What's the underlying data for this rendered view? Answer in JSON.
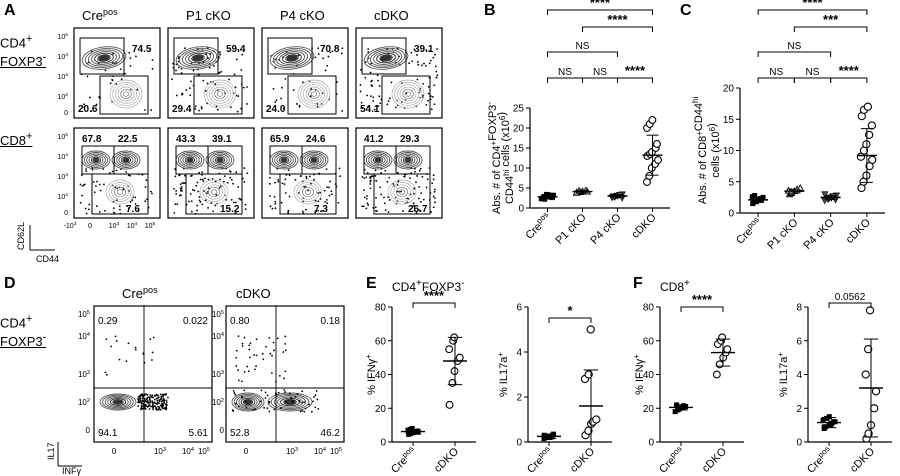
{
  "panel_letters": {
    "A": "A",
    "B": "B",
    "C": "C",
    "D": "D",
    "E": "E",
    "F": "F"
  },
  "panelA": {
    "columns": [
      {
        "name": "Cre",
        "sup": "pos"
      },
      {
        "name": "P1 cKO",
        "sup": ""
      },
      {
        "name": "P4 cKO",
        "sup": ""
      },
      {
        "name": "cDKO",
        "sup": ""
      }
    ],
    "row1": {
      "label_line1": "CD4",
      "label_sup1": "+",
      "label_line2": "FOXP3",
      "label_sup2": "-",
      "top_values": [
        "74.5",
        "59.4",
        "70.8",
        "39.1"
      ],
      "bottom_values": [
        "20.6",
        "29.4",
        "24.0",
        "54.1"
      ]
    },
    "row2": {
      "label": "CD8",
      "label_sup": "+",
      "tl_values": [
        "67.8",
        "43.3",
        "65.9",
        "41.2"
      ],
      "tr_values": [
        "22.5",
        "39.1",
        "24.6",
        "29.3"
      ],
      "bottom_values": [
        "7.6",
        "15.2",
        "7.3",
        "26.7"
      ]
    },
    "y_ticks": [
      "10",
      "10",
      "10",
      "10",
      "0"
    ],
    "y_tick_sup": [
      "5",
      "4",
      "3",
      "2",
      ""
    ],
    "x_ticks": [
      "-10",
      "0",
      "10",
      "10",
      "10"
    ],
    "x_tick_sup": [
      "3",
      "",
      "3",
      "4",
      "5"
    ],
    "y_axis": "CD62L",
    "x_axis": "CD44"
  },
  "panelD": {
    "columns": [
      {
        "name": "Cre",
        "sup": "pos"
      },
      {
        "name": "cDKO",
        "sup": ""
      }
    ],
    "row_label_line1": "CD4",
    "row_label_sup1": "+",
    "row_label_line2": "FOXP3",
    "row_label_sup2": "-",
    "quadrants": [
      {
        "tl": "0.29",
        "tr": "0.022",
        "bl": "94.1",
        "br": "5.61"
      },
      {
        "tl": "0.80",
        "tr": "0.18",
        "bl": "52.8",
        "br": "46.2"
      }
    ],
    "y_axis": "IL17",
    "x_axis": "INFγ",
    "ticks": {
      "t5": "10",
      "t4": "10",
      "t3": "10",
      "t2": "10",
      "t0": "0"
    }
  },
  "panelE_title": {
    "t1": "CD4",
    "s1": "+",
    "t2": "FOXP3",
    "s2": "-"
  },
  "panelF_title": {
    "t1": "CD8",
    "s1": "+"
  },
  "chart_data": [
    {
      "type": "scatter",
      "panel": "B",
      "categories": [
        "Crepos",
        "P1 cKO",
        "P4 cKO",
        "cDKO"
      ],
      "series": [
        {
          "values": [
            [
              2.3,
              2.6,
              2.8,
              3.0,
              3.2,
              2.5,
              2.9,
              3.4,
              2.7,
              3.1,
              2.4,
              2.2,
              3.3,
              2.8,
              2.6
            ],
            [
              3.8,
              4.0,
              4.2,
              4.4,
              4.1,
              3.9,
              4.3
            ],
            [
              2.6,
              2.8,
              3.0,
              3.2,
              3.4,
              2.9,
              2.7,
              3.1,
              3.3,
              2.5
            ],
            [
              6.5,
              8.0,
              10.0,
              11.0,
              12.0,
              13.0,
              13.5,
              14.0,
              15.0,
              16.0,
              20.0,
              21.0,
              22.0
            ]
          ]
        }
      ],
      "means": [
        2.8,
        4.1,
        3.0,
        13.2
      ],
      "sd": [
        0.4,
        0.3,
        0.3,
        5.0
      ],
      "ylabel": "Abs. # of CD4⁺FOXP3⁻ CD44ʰⁱ cells (x10⁶)",
      "ylim": [
        0,
        25
      ],
      "yticks": [
        0,
        5,
        10,
        15,
        20,
        25
      ],
      "significance": [
        {
          "a": 0,
          "b": 3,
          "label": "****"
        },
        {
          "a": 1,
          "b": 3,
          "label": "****"
        },
        {
          "a": 0,
          "b": 2,
          "label": "NS"
        },
        {
          "a": 0,
          "b": 1,
          "label": "NS"
        },
        {
          "a": 1,
          "b": 2,
          "label": "NS"
        },
        {
          "a": 2,
          "b": 3,
          "label": "****"
        }
      ]
    },
    {
      "type": "scatter",
      "panel": "C",
      "categories": [
        "Crepos",
        "P1 cKO",
        "P4 cKO",
        "cDKO"
      ],
      "series": [
        {
          "values": [
            [
              1.5,
              1.8,
              2.0,
              2.2,
              2.4,
              2.6,
              1.9,
              2.1,
              2.3,
              2.5,
              1.7,
              2.8,
              2.0,
              2.2
            ],
            [
              3.0,
              3.2,
              3.5,
              3.8,
              4.0,
              3.6,
              3.4
            ],
            [
              2.0,
              2.2,
              2.4,
              2.6,
              2.8,
              3.0,
              2.3,
              2.5,
              2.7,
              2.1
            ],
            [
              4.0,
              5.0,
              6.0,
              7.5,
              8.5,
              9.0,
              10.0,
              11.0,
              12.5,
              14.0,
              15.5,
              16.5,
              17.0
            ]
          ]
        }
      ],
      "means": [
        2.1,
        3.5,
        2.5,
        9.2
      ],
      "sd": [
        0.4,
        0.3,
        0.3,
        4.3
      ],
      "ylabel": "Abs. # of CD8⁺CD44ʰⁱ cells (x10⁶)",
      "ylim": [
        0,
        20
      ],
      "yticks": [
        0,
        5,
        10,
        15,
        20
      ],
      "significance": [
        {
          "a": 0,
          "b": 3,
          "label": "****"
        },
        {
          "a": 1,
          "b": 3,
          "label": "***"
        },
        {
          "a": 0,
          "b": 2,
          "label": "NS"
        },
        {
          "a": 0,
          "b": 1,
          "label": "NS"
        },
        {
          "a": 1,
          "b": 2,
          "label": "NS"
        },
        {
          "a": 2,
          "b": 3,
          "label": "****"
        }
      ]
    },
    {
      "type": "scatter",
      "panel": "E1",
      "categories": [
        "Crepos",
        "cDKO"
      ],
      "series": [
        {
          "values": [
            [
              4.5,
              5.0,
              5.5,
              6.0,
              6.5,
              7.0,
              7.5,
              8.0,
              6.2,
              5.8
            ],
            [
              22,
              35,
              42,
              48,
              50,
              55,
              60,
              62
            ]
          ]
        }
      ],
      "means": [
        6.2,
        48
      ],
      "sd": [
        1.2,
        14
      ],
      "ylabel": "% IFNγ⁺",
      "ylim": [
        0,
        80
      ],
      "yticks": [
        0,
        20,
        40,
        60,
        80
      ],
      "significance": [
        {
          "a": 0,
          "b": 1,
          "label": "****"
        }
      ]
    },
    {
      "type": "scatter",
      "panel": "E2",
      "categories": [
        "Crepos",
        "cDKO"
      ],
      "series": [
        {
          "values": [
            [
              0.15,
              0.2,
              0.25,
              0.3,
              0.35,
              0.3,
              0.25,
              0.2,
              0.22
            ],
            [
              0.3,
              0.5,
              0.8,
              0.9,
              1.0,
              2.8,
              3.0,
              5.0
            ]
          ]
        }
      ],
      "means": [
        0.25,
        1.6
      ],
      "sd": [
        0.1,
        1.6
      ],
      "ylabel": "% IL17a⁺",
      "ylim": [
        0,
        6
      ],
      "yticks": [
        0,
        2,
        4,
        6
      ],
      "significance": [
        {
          "a": 0,
          "b": 1,
          "label": "*"
        }
      ]
    },
    {
      "type": "scatter",
      "panel": "F1",
      "categories": [
        "Crepos",
        "cDKO"
      ],
      "series": [
        {
          "values": [
            [
              18,
              19,
              20,
              20.5,
              21,
              22,
              19.5,
              20.8,
              21.5
            ],
            [
              40,
              46,
              50,
              53,
              55,
              58,
              60,
              62
            ]
          ]
        }
      ],
      "means": [
        20.5,
        53
      ],
      "sd": [
        1.5,
        8
      ],
      "ylabel": "% IFNγ⁺",
      "ylim": [
        0,
        80
      ],
      "yticks": [
        0,
        20,
        40,
        60,
        80
      ],
      "significance": [
        {
          "a": 0,
          "b": 1,
          "label": "****"
        }
      ]
    },
    {
      "type": "scatter",
      "panel": "F2",
      "categories": [
        "Crepos",
        "cDKO"
      ],
      "series": [
        {
          "values": [
            [
              0.8,
              0.9,
              1.0,
              1.1,
              1.2,
              1.3,
              1.4,
              1.5,
              1.0,
              1.2,
              0.9
            ],
            [
              0.2,
              0.5,
              1.0,
              2.0,
              3.0,
              4.0,
              5.5,
              7.8
            ]
          ]
        }
      ],
      "means": [
        1.15,
        3.2
      ],
      "sd": [
        0.3,
        2.9
      ],
      "ylabel": "% IL17a⁺",
      "ylim": [
        0,
        8
      ],
      "yticks": [
        0,
        2,
        4,
        6,
        8
      ],
      "significance": [
        {
          "a": 0,
          "b": 1,
          "label": "0.0562"
        }
      ]
    }
  ]
}
